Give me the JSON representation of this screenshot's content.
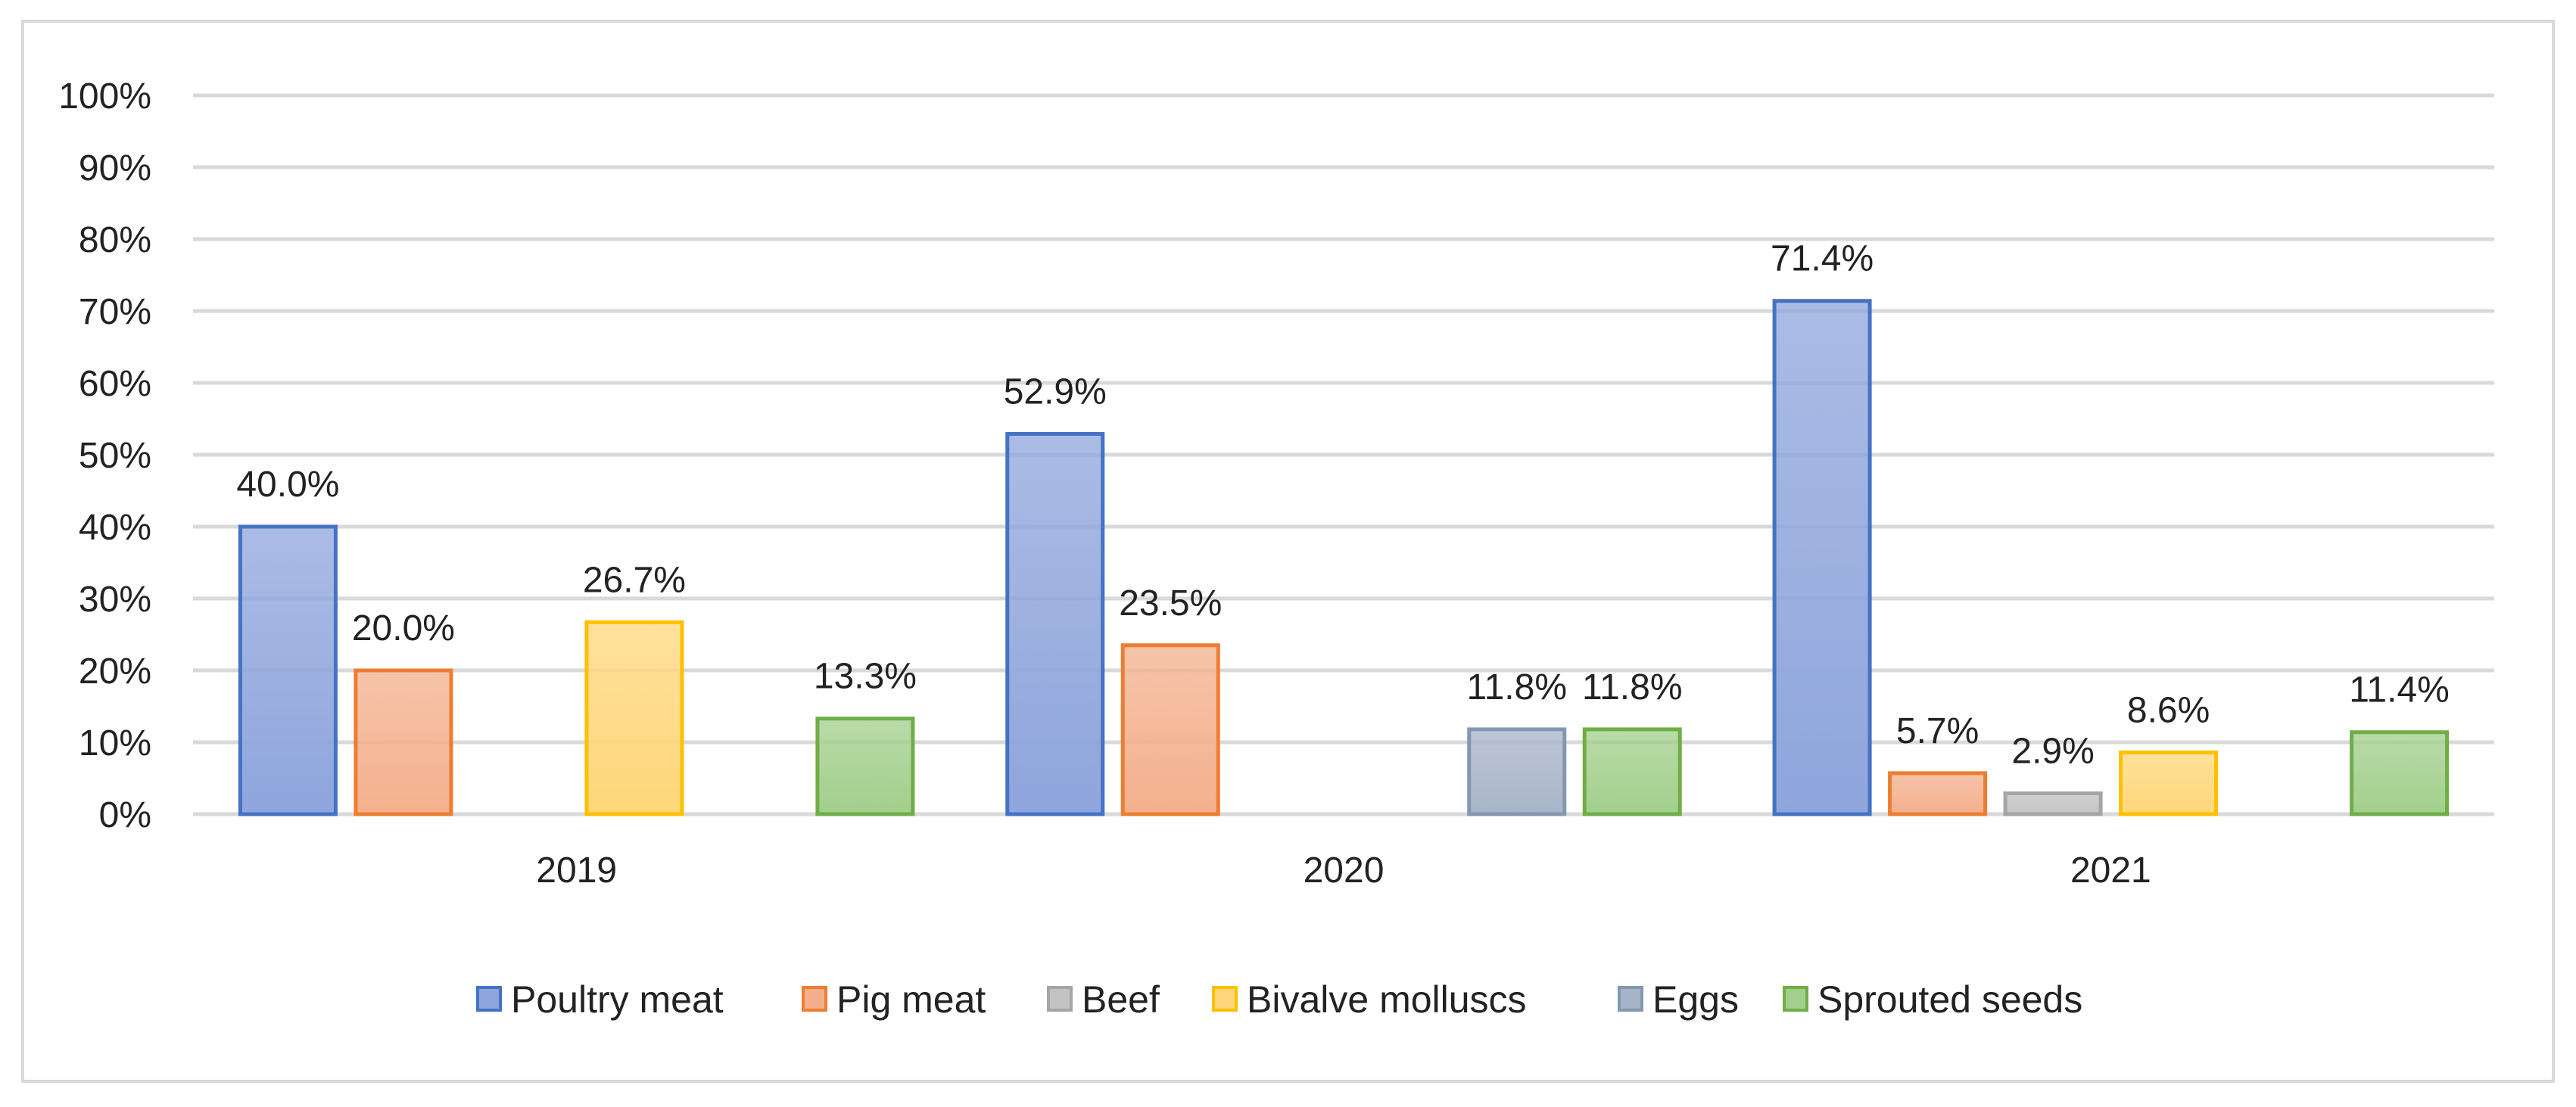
{
  "chart_data": {
    "type": "bar",
    "categories": [
      "2019",
      "2020",
      "2021"
    ],
    "ylim": [
      0,
      100
    ],
    "y_ticks": [
      0,
      10,
      20,
      30,
      40,
      50,
      60,
      70,
      80,
      90,
      100
    ],
    "y_tick_labels": [
      "0%",
      "10%",
      "20%",
      "30%",
      "40%",
      "50%",
      "60%",
      "70%",
      "80%",
      "90%",
      "100%"
    ],
    "grid": true,
    "legend_position": "bottom",
    "title": "",
    "xlabel": "",
    "ylabel": "",
    "series": [
      {
        "name": "Poultry meat",
        "values": [
          40.0,
          52.9,
          71.4
        ],
        "labels": [
          "40.0%",
          "52.9%",
          "71.4%"
        ],
        "color": "#8fa5dc",
        "edge": "#4472c4"
      },
      {
        "name": "Pig meat",
        "values": [
          20.0,
          23.5,
          5.7
        ],
        "labels": [
          "20.0%",
          "23.5%",
          "5.7%"
        ],
        "color": "#f4b08d",
        "edge": "#ed7d31"
      },
      {
        "name": "Beef",
        "values": [
          null,
          null,
          2.9
        ],
        "labels": [
          "",
          "",
          "2.9%"
        ],
        "color": "#c3c3c3",
        "edge": "#a5a5a5"
      },
      {
        "name": "Bivalve molluscs",
        "values": [
          26.7,
          null,
          8.6
        ],
        "labels": [
          "26.7%",
          "",
          "8.6%"
        ],
        "color": "#ffd77a",
        "edge": "#ffc000"
      },
      {
        "name": "Eggs",
        "values": [
          null,
          11.8,
          null
        ],
        "labels": [
          "",
          "11.8%",
          ""
        ],
        "color": "#a8b4c8",
        "edge": "#8497b0"
      },
      {
        "name": "Sprouted seeds",
        "values": [
          13.3,
          11.8,
          11.4
        ],
        "labels": [
          "13.3%",
          "11.8%",
          "11.4%"
        ],
        "color": "#a2cf8c",
        "edge": "#70ad47"
      }
    ]
  }
}
